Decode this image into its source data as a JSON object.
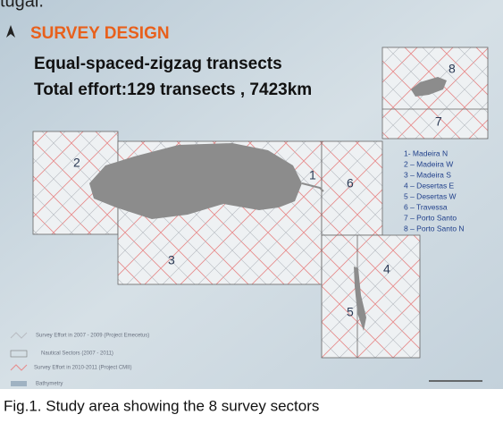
{
  "header": {
    "top_text": "tugal.",
    "title": "SURVEY DESIGN",
    "line1": "Equal-spaced-zigzag transects",
    "line2": "Total effort:129 transects , 7423km"
  },
  "sectors": [
    "1",
    "2",
    "3",
    "4",
    "5",
    "6",
    "7",
    "8"
  ],
  "sector_list": [
    "1- Madeira N",
    "2 – Madeira W",
    "3 – Madeira S",
    "4 – Desertas E",
    "5 – Desertas W",
    "6 – Travessa",
    "7 – Porto Santo",
    "8 – Porto Santo N"
  ],
  "legend": [
    "Survey Effort in 2007 - 2009 (Project Emecetus)",
    "Nautical Sectors (2007 - 2011)",
    "Survey Effort in 2010-2011 (Project CMII)",
    "Bathymetry"
  ],
  "caption": "Fig.1. Study area showing the 8 survey sectors"
}
